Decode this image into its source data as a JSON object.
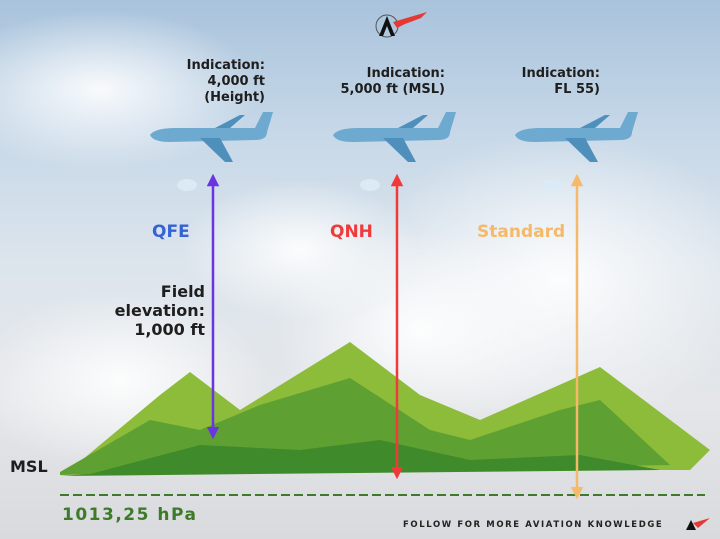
{
  "logo": {
    "name": "logo-aviation",
    "text": ""
  },
  "aircraft": [
    {
      "indication_label": "Indication:",
      "indication_value": "4,000 ft",
      "indication_extra": "(Height)",
      "mode": "QFE",
      "color": "#6a35e0"
    },
    {
      "indication_label": "Indication:",
      "indication_value": "5,000 ft (MSL)",
      "indication_extra": "",
      "mode": "QNH",
      "color": "#f03a3a"
    },
    {
      "indication_label": "Indication:",
      "indication_value": "FL 55)",
      "indication_extra": "",
      "mode": "Standard",
      "color": "#f6b96a"
    }
  ],
  "field_elevation": {
    "line1": "Field",
    "line2": "elevation:",
    "line3": "1,000 ft"
  },
  "msl_label": "MSL",
  "pressure_label": "1013,25 hPa",
  "pressure_color": "#3d7a2a",
  "footer": "FOLLOW FOR MORE AVIATION KNOWLEDGE"
}
